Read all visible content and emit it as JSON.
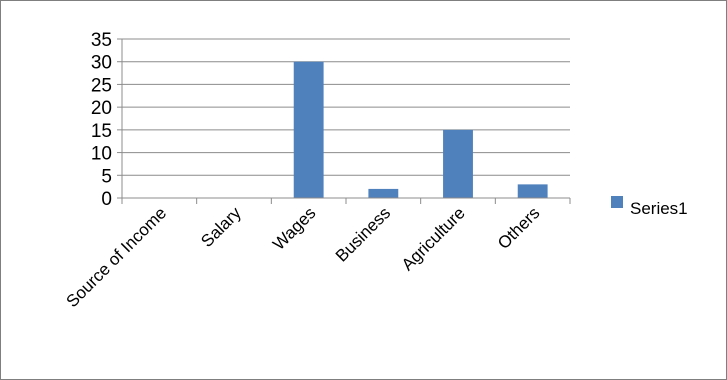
{
  "chart_data": {
    "type": "bar",
    "categories": [
      "Source of Income",
      "Salary",
      "Wages",
      "Business",
      "Agriculture",
      "Others"
    ],
    "series": [
      {
        "name": "Series1",
        "values": [
          0,
          0,
          30,
          2,
          15,
          3
        ],
        "color": "#4f81bd"
      }
    ],
    "y_ticks": [
      "0",
      "5",
      "10",
      "15",
      "20",
      "25",
      "30",
      "35"
    ],
    "ylim": [
      0,
      35
    ],
    "grid": true,
    "legend_position": "right",
    "title": "",
    "xlabel": "",
    "ylabel": ""
  }
}
